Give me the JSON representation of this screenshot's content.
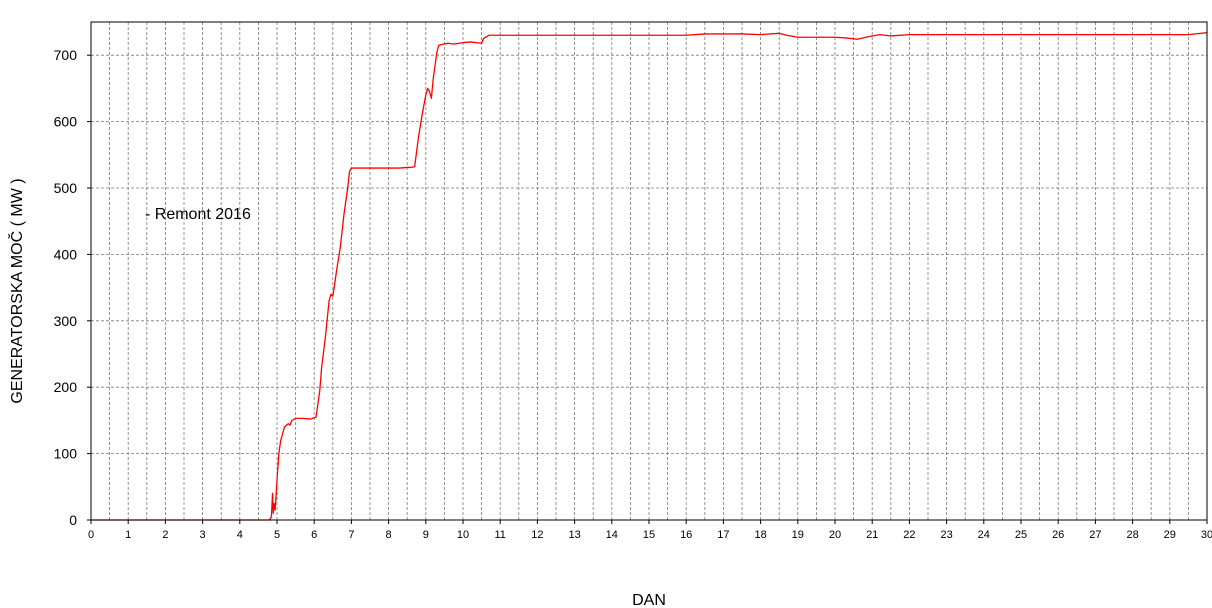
{
  "chart_data": {
    "type": "line",
    "title": "",
    "xlabel": "DAN",
    "ylabel": "GENERATORSKA MOČ ( MW )",
    "xlim": [
      0,
      30
    ],
    "ylim": [
      0,
      750
    ],
    "x_minor_step": 0.5,
    "x_major_step": 1,
    "y_major_step": 100,
    "y_ticks": [
      0,
      100,
      200,
      300,
      400,
      500,
      600,
      700
    ],
    "x_ticks": [
      0,
      1,
      2,
      3,
      4,
      5,
      6,
      7,
      8,
      9,
      10,
      11,
      12,
      13,
      14,
      15,
      16,
      17,
      18,
      19,
      20,
      21,
      22,
      23,
      24,
      25,
      26,
      27,
      28,
      29,
      30
    ],
    "grid": true,
    "legend": {
      "position": "upper-left",
      "text": "- Remont 2016"
    },
    "series": [
      {
        "color": "#ff0000",
        "x": [
          0,
          4.8,
          4.85,
          4.88,
          4.9,
          4.92,
          4.95,
          5.0,
          5.05,
          5.1,
          5.2,
          5.3,
          5.35,
          5.4,
          5.5,
          5.7,
          5.9,
          6.05,
          6.1,
          6.15,
          6.2,
          6.3,
          6.4,
          6.45,
          6.5,
          6.55,
          6.6,
          6.7,
          6.8,
          6.9,
          6.95,
          7.0,
          7.1,
          7.3,
          7.6,
          7.8,
          8.0,
          8.3,
          8.5,
          8.6,
          8.7,
          8.8,
          8.9,
          9.0,
          9.05,
          9.1,
          9.15,
          9.2,
          9.3,
          9.35,
          9.5,
          9.6,
          9.7,
          9.8,
          10.0,
          10.2,
          10.5,
          10.55,
          10.6,
          10.7,
          10.8,
          11.0,
          11.5,
          12.0,
          14.0,
          16.0,
          16.5,
          17.0,
          17.5,
          18.0,
          18.5,
          18.7,
          19.0,
          19.5,
          20.0,
          20.3,
          20.6,
          20.9,
          21.2,
          21.5,
          22.0,
          25.0,
          28.0,
          29.5,
          30.0
        ],
        "y": [
          0,
          0,
          5,
          40,
          10,
          25,
          15,
          60,
          100,
          120,
          140,
          145,
          143,
          150,
          153,
          153,
          152,
          155,
          175,
          195,
          230,
          275,
          330,
          340,
          337,
          355,
          375,
          410,
          460,
          500,
          525,
          530,
          530,
          530,
          530,
          530,
          530,
          530,
          531,
          531,
          532,
          575,
          610,
          640,
          650,
          645,
          635,
          665,
          705,
          715,
          717,
          718,
          717,
          717,
          719,
          720,
          718,
          725,
          727,
          730,
          730,
          730,
          730,
          730,
          730,
          730,
          732,
          732,
          732,
          731,
          733,
          730,
          727,
          727,
          727,
          726,
          724,
          728,
          731,
          729,
          731,
          731,
          731,
          731,
          734
        ]
      }
    ]
  }
}
